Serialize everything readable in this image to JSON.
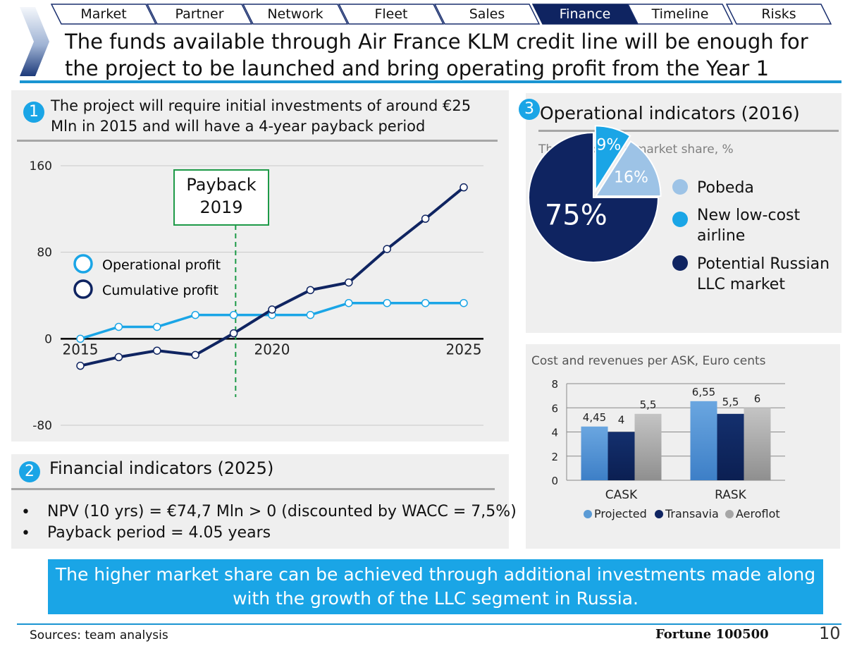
{
  "nav": {
    "tabs": [
      {
        "label": "Market",
        "active": false
      },
      {
        "label": "Partner",
        "active": false
      },
      {
        "label": "Network",
        "active": false
      },
      {
        "label": "Fleet",
        "active": false
      },
      {
        "label": "Sales",
        "active": false
      },
      {
        "label": "Finance",
        "active": true
      },
      {
        "label": "Timeline",
        "active": false
      },
      {
        "label": "Risks",
        "active": false
      }
    ]
  },
  "headline": "The funds available through Air France KLM credit line will be enough for the project to be launched and bring operating profit from the Year 1",
  "section1": {
    "number": "1",
    "title": "The project will require initial investments of around €25 Mln in 2015 and will have a 4-year payback period"
  },
  "section2": {
    "number": "2",
    "title": "Financial indicators (2025)",
    "bullet_char": "•",
    "bullets": [
      "NPV (10 yrs) = €74,7 Mln > 0 (discounted by WACC = 7,5%)",
      "Payback period = 4.05 years"
    ]
  },
  "section3": {
    "number": "3",
    "title": "Operational indicators (2016)"
  },
  "banner": "The higher market share can be achieved through additional investments made along with the growth of the LLC segment in Russia.",
  "footer": {
    "sources": "Sources: team analysis",
    "brand": "Fortune 100500",
    "page": "10"
  },
  "colors": {
    "accent": "#1aa5e6",
    "navy": "#0f2461",
    "light_blue": "#9dc3e6",
    "gray": "#a6a6a6",
    "panel": "#efefef",
    "green": "#1e9a48"
  },
  "chart_data": [
    {
      "type": "line",
      "title": "",
      "x": [
        2015,
        2016,
        2017,
        2018,
        2019,
        2020,
        2021,
        2022,
        2023,
        2024,
        2025
      ],
      "x_tick_labels": [
        "2015",
        "2020",
        "2025"
      ],
      "y_ticks": [
        "160",
        "80",
        "0",
        "-80"
      ],
      "ylim": [
        -80,
        160
      ],
      "series": [
        {
          "name": "Operational profit",
          "values": [
            0,
            11,
            11,
            22,
            22,
            22,
            22,
            33,
            33,
            33,
            33
          ]
        },
        {
          "name": "Cumulative profit",
          "values": [
            -25,
            -17,
            -11,
            -15,
            5,
            27,
            45,
            52,
            83,
            111,
            140
          ]
        }
      ],
      "annotation": {
        "line1": "Payback",
        "line2": "2019",
        "x": 2019.05
      }
    },
    {
      "type": "pie",
      "title": "The Company's market share, %",
      "slices": [
        {
          "label": "New low-cost airline",
          "value": 9,
          "display": "9%"
        },
        {
          "label": "Pobeda",
          "value": 16,
          "display": "16%"
        },
        {
          "label": "Potential Russian LLC market",
          "value": 75,
          "display": "75%"
        }
      ],
      "legend": [
        {
          "label": "Pobeda",
          "color": "#9dc3e6"
        },
        {
          "label": "New low-cost airline",
          "color": "#1aa5e6"
        },
        {
          "label": "Potential Russian LLC market",
          "color": "#0f2461"
        }
      ]
    },
    {
      "type": "bar",
      "title": "Cost and revenues per ASK, Euro cents",
      "categories": [
        "CASK",
        "RASK"
      ],
      "series": [
        {
          "name": "Projected",
          "values": [
            4.45,
            6.55
          ],
          "labels": [
            "4,45",
            "6,55"
          ]
        },
        {
          "name": "Transavia",
          "values": [
            4,
            5.5
          ],
          "labels": [
            "4",
            "5,5"
          ]
        },
        {
          "name": "Aeroflot",
          "values": [
            5.5,
            6
          ],
          "labels": [
            "5,5",
            "6"
          ]
        }
      ],
      "y_ticks": [
        "0",
        "2",
        "4",
        "6",
        "8"
      ],
      "ylim": [
        0,
        8
      ],
      "legend_placement": "bottom"
    }
  ]
}
